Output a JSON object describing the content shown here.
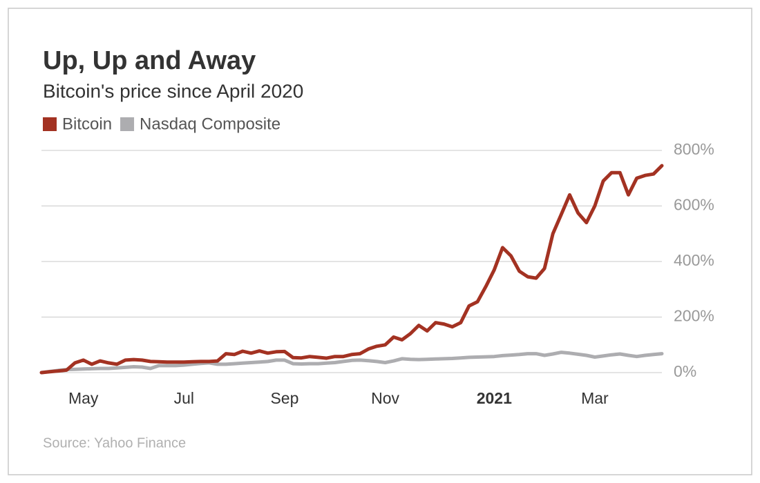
{
  "chart_data": {
    "type": "line",
    "title": "Up, Up and Away",
    "subtitle": "Bitcoin's price since April 2020",
    "source": "Source: Yahoo Finance",
    "categories": [
      null,
      null,
      null,
      null,
      null,
      "May",
      null,
      null,
      null,
      null,
      null,
      null,
      null,
      null,
      null,
      null,
      null,
      "Jul",
      null,
      null,
      null,
      null,
      null,
      null,
      null,
      null,
      null,
      null,
      null,
      "Sep",
      null,
      null,
      null,
      null,
      null,
      null,
      null,
      null,
      null,
      null,
      null,
      "Nov",
      null,
      null,
      null,
      null,
      null,
      null,
      null,
      null,
      null,
      null,
      null,
      null,
      "2021",
      null,
      null,
      null,
      null,
      null,
      null,
      null,
      null,
      null,
      null,
      null,
      "Mar",
      null,
      null,
      null,
      null,
      null,
      null,
      null,
      null
    ],
    "series": [
      {
        "name": "Bitcoin",
        "color": "#a33222",
        "values": [
          0,
          3,
          6,
          9,
          35,
          45,
          30,
          42,
          35,
          30,
          45,
          47,
          45,
          40,
          39,
          38,
          38,
          38,
          39,
          40,
          40,
          42,
          68,
          65,
          77,
          70,
          78,
          70,
          75,
          76,
          54,
          53,
          58,
          55,
          52,
          58,
          58,
          65,
          68,
          85,
          95,
          100,
          128,
          118,
          140,
          170,
          150,
          180,
          175,
          165,
          180,
          240,
          255,
          310,
          370,
          450,
          420,
          365,
          345,
          340,
          375,
          500,
          570,
          640,
          575,
          540,
          600,
          690,
          720,
          720,
          640,
          700,
          710,
          715,
          745
        ]
      },
      {
        "name": "Nasdaq Composite",
        "color": "#adadb0",
        "values": [
          0,
          4,
          8,
          11,
          12,
          13,
          14,
          15,
          15,
          17,
          19,
          21,
          20,
          15,
          25,
          25,
          25,
          27,
          30,
          33,
          35,
          30,
          30,
          32,
          34,
          36,
          38,
          40,
          45,
          45,
          32,
          31,
          32,
          32,
          34,
          36,
          40,
          44,
          45,
          43,
          40,
          36,
          42,
          50,
          48,
          47,
          48,
          49,
          50,
          51,
          53,
          55,
          56,
          57,
          58,
          61,
          63,
          65,
          68,
          68,
          62,
          67,
          73,
          70,
          66,
          62,
          56,
          60,
          64,
          67,
          62,
          58,
          62,
          65,
          68
        ]
      }
    ],
    "ylim": [
      0,
      800
    ],
    "yticks": [
      {
        "value": 0,
        "label": "0%"
      },
      {
        "value": 200,
        "label": "200%"
      },
      {
        "value": 400,
        "label": "400%"
      },
      {
        "value": 600,
        "label": "600%"
      },
      {
        "value": 800,
        "label": "800%"
      }
    ],
    "grid": true
  }
}
